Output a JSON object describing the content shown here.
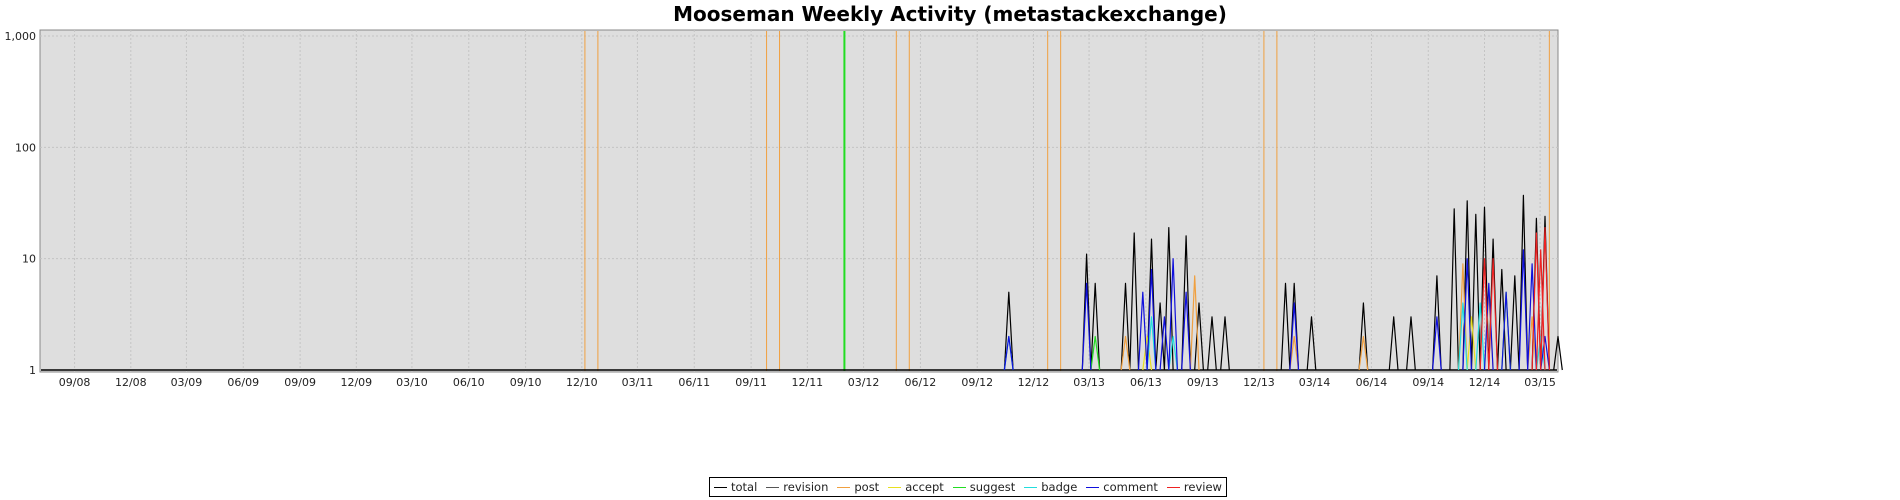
{
  "chart_data": {
    "type": "line",
    "title": "Mooseman Weekly Activity (metastackexchange)",
    "y_scale": "log",
    "ylim": [
      1,
      1000
    ],
    "y_ticks": [
      "1",
      "10",
      "100",
      "1,000"
    ],
    "x_range": [
      "2008-07-07",
      "2015-03-30"
    ],
    "x_ticks": [
      "09/08",
      "12/08",
      "03/09",
      "06/09",
      "09/09",
      "12/09",
      "03/10",
      "06/10",
      "09/10",
      "12/10",
      "03/11",
      "06/11",
      "09/11",
      "12/11",
      "03/12",
      "06/12",
      "09/12",
      "12/12",
      "03/13",
      "06/13",
      "09/13",
      "12/13",
      "03/14",
      "06/14",
      "09/14",
      "12/14",
      "03/15"
    ],
    "grid": true,
    "legend_position": "bottom",
    "series": [
      {
        "name": "total",
        "color": "#000000",
        "points": [
          [
            "2012-10-22",
            5
          ],
          [
            "2013-02-25",
            11
          ],
          [
            "2013-03-11",
            6
          ],
          [
            "2013-04-29",
            6
          ],
          [
            "2013-05-13",
            17
          ],
          [
            "2013-06-10",
            15
          ],
          [
            "2013-06-24",
            4
          ],
          [
            "2013-07-08",
            19
          ],
          [
            "2013-08-05",
            16
          ],
          [
            "2013-08-26",
            4
          ],
          [
            "2013-09-16",
            3
          ],
          [
            "2013-10-07",
            3
          ],
          [
            "2014-01-13",
            6
          ],
          [
            "2014-01-27",
            6
          ],
          [
            "2014-02-24",
            3
          ],
          [
            "2014-05-19",
            4
          ],
          [
            "2014-07-07",
            3
          ],
          [
            "2014-08-04",
            3
          ],
          [
            "2014-09-15",
            7
          ],
          [
            "2014-10-13",
            28
          ],
          [
            "2014-11-03",
            33
          ],
          [
            "2014-11-17",
            25
          ],
          [
            "2014-12-01",
            29
          ],
          [
            "2014-12-15",
            15
          ],
          [
            "2014-12-29",
            8
          ],
          [
            "2015-01-19",
            7
          ],
          [
            "2015-02-02",
            37
          ],
          [
            "2015-02-23",
            23
          ],
          [
            "2015-03-09",
            24
          ],
          [
            "2015-03-30",
            2
          ]
        ]
      },
      {
        "name": "revision",
        "color": "#555555",
        "points": []
      },
      {
        "name": "post",
        "color": "#f0a040",
        "points": [
          [
            "2013-04-29",
            2
          ],
          [
            "2013-08-19",
            7
          ],
          [
            "2014-01-27",
            2
          ],
          [
            "2014-05-19",
            2
          ],
          [
            "2014-10-27",
            9
          ],
          [
            "2014-12-08",
            5
          ],
          [
            "2015-02-16",
            3
          ]
        ],
        "vlines": [
          "2010-12-06",
          "2010-12-27",
          "2011-09-26",
          "2011-10-17",
          "2012-04-23",
          "2012-05-14",
          "2012-12-24",
          "2013-01-14",
          "2013-12-09",
          "2013-12-30",
          "2015-03-16"
        ]
      },
      {
        "name": "accept",
        "color": "#e8e020",
        "points": [
          [
            "2013-06-03",
            2
          ],
          [
            "2014-11-10",
            3
          ]
        ]
      },
      {
        "name": "suggest",
        "color": "#22dd22",
        "points": [
          [
            "2013-03-11",
            2
          ],
          [
            "2015-01-05",
            5
          ]
        ],
        "vlines": [
          "2012-01-30"
        ]
      },
      {
        "name": "badge",
        "color": "#22dddd",
        "points": [
          [
            "2012-10-22",
            2
          ],
          [
            "2013-06-10",
            3
          ],
          [
            "2013-07-15",
            2
          ],
          [
            "2014-10-27",
            4
          ],
          [
            "2014-11-24",
            4
          ],
          [
            "2015-03-02",
            2
          ]
        ]
      },
      {
        "name": "comment",
        "color": "#1010dd",
        "points": [
          [
            "2012-10-22",
            2
          ],
          [
            "2013-02-25",
            6
          ],
          [
            "2013-05-27",
            5
          ],
          [
            "2013-06-10",
            8
          ],
          [
            "2013-07-01",
            3
          ],
          [
            "2013-07-15",
            10
          ],
          [
            "2013-08-05",
            5
          ],
          [
            "2014-01-27",
            4
          ],
          [
            "2014-09-15",
            3
          ],
          [
            "2014-11-03",
            10
          ],
          [
            "2014-12-08",
            6
          ],
          [
            "2015-01-05",
            5
          ],
          [
            "2015-02-02",
            12
          ],
          [
            "2015-02-16",
            9
          ],
          [
            "2015-03-09",
            2
          ]
        ]
      },
      {
        "name": "review",
        "color": "#ee2222",
        "points": [
          [
            "2014-12-01",
            10
          ],
          [
            "2014-12-15",
            10
          ],
          [
            "2015-02-23",
            17
          ],
          [
            "2015-03-02",
            12
          ],
          [
            "2015-03-09",
            19
          ]
        ]
      }
    ]
  }
}
